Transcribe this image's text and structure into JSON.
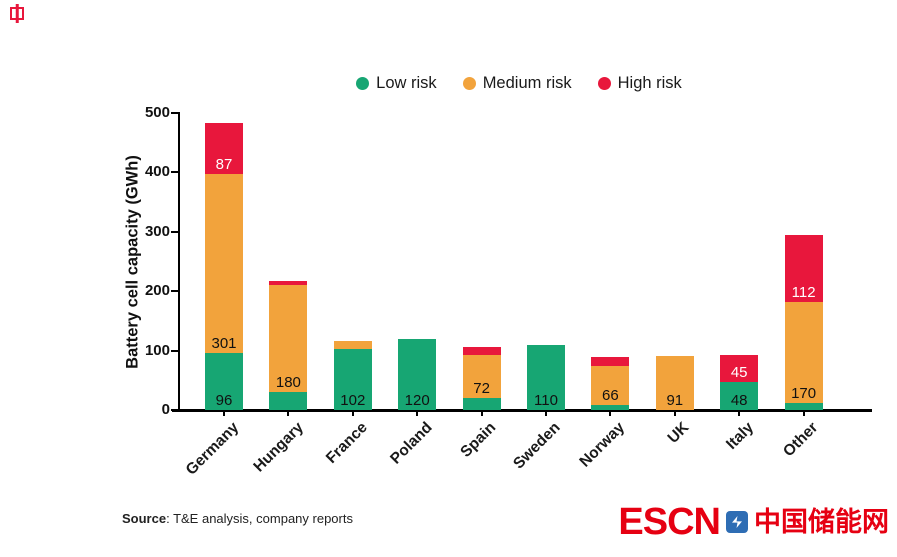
{
  "legend": {
    "items": [
      {
        "label": "Low risk",
        "color": "#17a673"
      },
      {
        "label": "Medium risk",
        "color": "#f2a33c"
      },
      {
        "label": "High risk",
        "color": "#e8173c"
      }
    ]
  },
  "chart_data": {
    "type": "bar",
    "stacked": true,
    "title": "",
    "xlabel": "",
    "ylabel": "Battery cell capacity (GWh)",
    "ylim": [
      0,
      500
    ],
    "yticks": [
      0,
      100,
      200,
      300,
      400,
      500
    ],
    "grid": false,
    "legend_position": "top",
    "categories": [
      "Germany",
      "Hungary",
      "France",
      "Poland",
      "Spain",
      "Sweden",
      "Norway",
      "UK",
      "Italy",
      "Other"
    ],
    "series": [
      {
        "name": "Low risk",
        "color": "#17a673",
        "label_color": "#111111",
        "values": [
          96,
          30,
          102,
          120,
          20,
          110,
          8,
          0,
          48,
          12
        ],
        "labels": [
          "96",
          "",
          "102",
          "120",
          "",
          "110",
          "",
          "",
          "48",
          ""
        ]
      },
      {
        "name": "Medium risk",
        "color": "#f2a33c",
        "label_color": "#111111",
        "values": [
          301,
          180,
          14,
          0,
          72,
          0,
          66,
          91,
          0,
          170
        ],
        "labels": [
          "301",
          "180",
          "",
          "",
          "72",
          "",
          "66",
          "91",
          "",
          "170"
        ]
      },
      {
        "name": "High risk",
        "color": "#e8173c",
        "label_color": "#ffffff",
        "values": [
          87,
          8,
          0,
          0,
          14,
          0,
          15,
          0,
          45,
          112
        ],
        "labels": [
          "87",
          "",
          "",
          "",
          "",
          "",
          "",
          "",
          "45",
          "112"
        ]
      }
    ]
  },
  "source": {
    "label": "Source",
    "text": ": T&E analysis, company reports"
  },
  "footer_logo": {
    "escn": "ESCN",
    "chinese": "中国储能网",
    "color": "#e60012",
    "icon_color": "#2e6db4"
  }
}
